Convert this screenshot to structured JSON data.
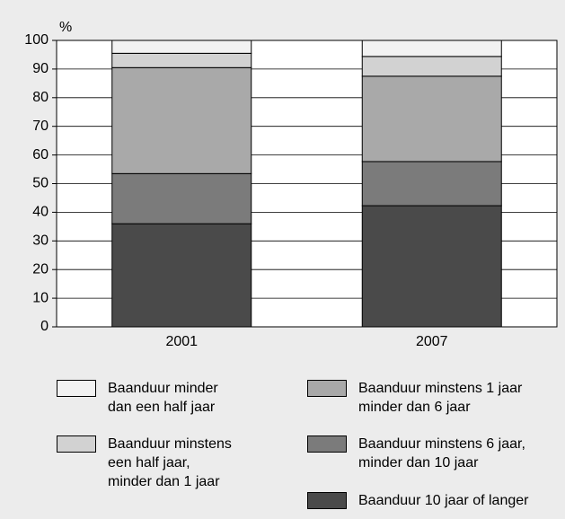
{
  "chart_data": {
    "type": "stacked_bar",
    "y_label": "%",
    "categories": [
      "2001",
      "2007"
    ],
    "series": [
      {
        "name": "Baanduur minder\ndan een half jaar",
        "color": "#f2f2f2",
        "values": [
          4.5,
          5.6
        ]
      },
      {
        "name": "Baanduur minstens\neen half jaar,\nminder dan 1 jaar",
        "color": "#d2d2d2",
        "values": [
          5,
          6.9
        ]
      },
      {
        "name": "Baanduur minstens 1 jaar\nminder dan 6 jaar",
        "color": "#a9a9a9",
        "values": [
          37,
          29.8
        ]
      },
      {
        "name": "Baanduur minstens 6 jaar,\nminder dan 10 jaar",
        "color": "#7b7b7b",
        "values": [
          17.5,
          15.4
        ]
      },
      {
        "name": "Baanduur 10 jaar of langer",
        "color": "#4a4a4a",
        "values": [
          36,
          42.3
        ]
      }
    ],
    "ylim": [
      0,
      100
    ],
    "yticks": [
      0,
      10,
      20,
      30,
      40,
      50,
      60,
      70,
      80,
      90,
      100
    ],
    "grid": true
  }
}
